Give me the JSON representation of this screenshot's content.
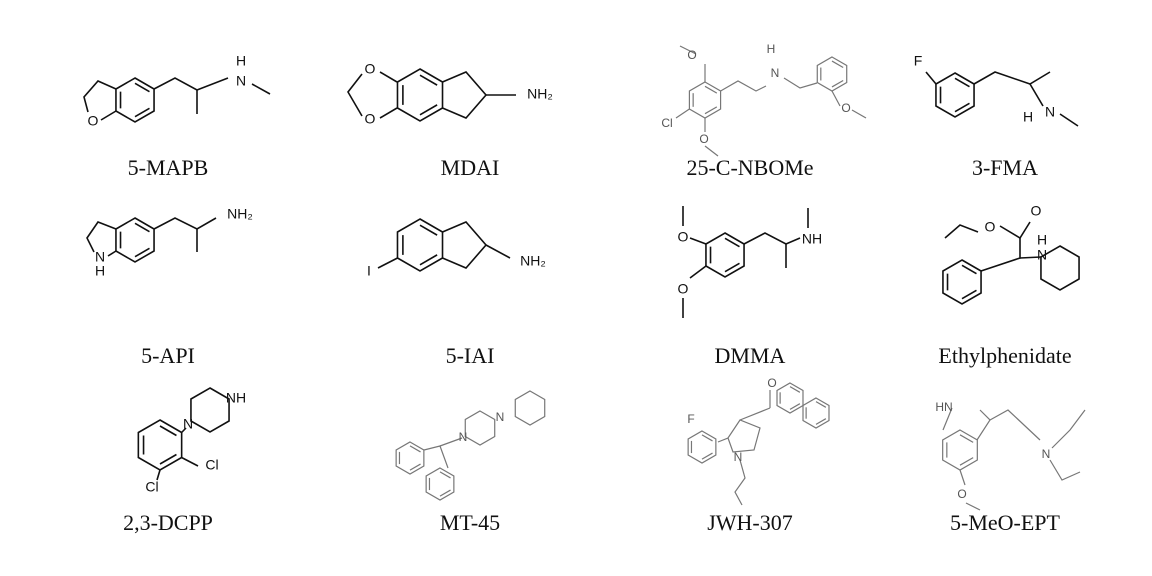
{
  "compounds": [
    {
      "name": "5-MAPB",
      "atoms": [
        "O",
        "N",
        "H"
      ]
    },
    {
      "name": "MDAI",
      "atoms": [
        "O",
        "O",
        "NH₂"
      ]
    },
    {
      "name": "25-C-NBOMe",
      "atoms": [
        "O",
        "H",
        "N",
        "O",
        "Cl",
        "O"
      ]
    },
    {
      "name": "3-FMA",
      "atoms": [
        "F",
        "N",
        "H"
      ]
    },
    {
      "name": "5-API",
      "atoms": [
        "N",
        "H",
        "NH₂"
      ]
    },
    {
      "name": "5-IAI",
      "atoms": [
        "NH₂",
        "I"
      ]
    },
    {
      "name": "DMMA",
      "atoms": [
        "O",
        "O",
        "NH"
      ]
    },
    {
      "name": "Ethylphenidate",
      "atoms": [
        "O",
        "O",
        "N",
        "H"
      ]
    },
    {
      "name": "2,3-DCPP",
      "atoms": [
        "N",
        "NH",
        "Cl",
        "Cl"
      ]
    },
    {
      "name": "MT-45",
      "atoms": [
        "N",
        "N"
      ]
    },
    {
      "name": "JWH-307",
      "atoms": [
        "F",
        "O",
        "N"
      ]
    },
    {
      "name": "5-MeO-EPT",
      "atoms": [
        "HN",
        "N",
        "O"
      ]
    }
  ]
}
